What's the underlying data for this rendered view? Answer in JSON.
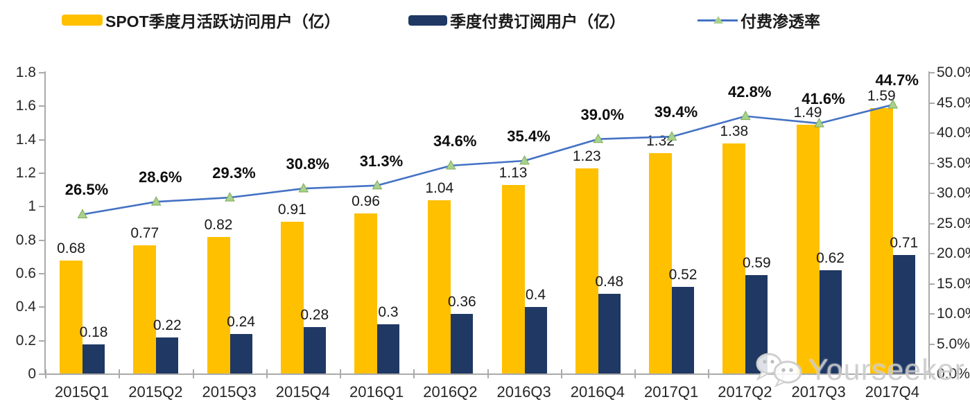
{
  "legend": [
    {
      "label": "SPOT季度月活跃访问用户（亿）",
      "swatch_color": "#FFC000",
      "type": "bar-swatch"
    },
    {
      "label": "季度付费订阅用户（亿）",
      "swatch_color": "#1F3864",
      "type": "bar-swatch"
    },
    {
      "label": "付费渗透率",
      "line_color": "#4472C4",
      "marker_color": "#A9D18E",
      "type": "line-swatch"
    }
  ],
  "watermark": {
    "text": "Yourseeker",
    "icon": "wechat-icon"
  },
  "chart_data": {
    "type": "bar",
    "title": "",
    "xlabel": "",
    "ylabel": "",
    "categories": [
      "2015Q1",
      "2015Q2",
      "2015Q3",
      "2015Q4",
      "2016Q1",
      "2016Q2",
      "2016Q3",
      "2016Q4",
      "2017Q1",
      "2017Q2",
      "2017Q3",
      "2017Q4"
    ],
    "series": [
      {
        "name": "SPOT季度月活跃访问用户（亿）",
        "type": "bar",
        "axis": "left",
        "color": "#FFC000",
        "values": [
          0.68,
          0.77,
          0.82,
          0.91,
          0.96,
          1.04,
          1.13,
          1.23,
          1.32,
          1.38,
          1.49,
          1.59
        ],
        "labels": [
          "0.68",
          "0.77",
          "0.82",
          "0.91",
          "0.96",
          "1.04",
          "1.13",
          "1.23",
          "1.32",
          "1.38",
          "1.49",
          "1.59"
        ]
      },
      {
        "name": "季度付费订阅用户（亿）",
        "type": "bar",
        "axis": "left",
        "color": "#1F3864",
        "values": [
          0.18,
          0.22,
          0.24,
          0.28,
          0.3,
          0.36,
          0.4,
          0.48,
          0.52,
          0.59,
          0.62,
          0.71
        ],
        "labels": [
          "0.18",
          "0.22",
          "0.24",
          "0.28",
          "0.3",
          "0.36",
          "0.4",
          "0.48",
          "0.52",
          "0.59",
          "0.62",
          "0.71"
        ]
      },
      {
        "name": "付费渗透率",
        "type": "line",
        "axis": "right",
        "color": "#4472C4",
        "marker": "triangle",
        "marker_color": "#A9D18E",
        "values": [
          26.5,
          28.6,
          29.3,
          30.8,
          31.3,
          34.6,
          35.4,
          39.0,
          39.4,
          42.8,
          41.6,
          44.7
        ],
        "labels": [
          "26.5%",
          "28.6%",
          "29.3%",
          "30.8%",
          "31.3%",
          "34.6%",
          "35.4%",
          "39.0%",
          "39.4%",
          "42.8%",
          "41.6%",
          "44.7%"
        ]
      }
    ],
    "left_axis": {
      "min": 0,
      "max": 1.8,
      "step": 0.2,
      "tick_labels": [
        "0",
        "0.2",
        "0.4",
        "0.6",
        "0.8",
        "1",
        "1.2",
        "1.4",
        "1.6",
        "1.8"
      ]
    },
    "right_axis": {
      "min": 0,
      "max": 50,
      "step": 5,
      "unit": "%",
      "tick_labels": [
        "0.0%",
        "5.0%",
        "10.0%",
        "15.0%",
        "20.0%",
        "25.0%",
        "30.0%",
        "35.0%",
        "40.0%",
        "45.0%",
        "50.0%"
      ]
    },
    "grid": false,
    "legend_position": "top"
  }
}
